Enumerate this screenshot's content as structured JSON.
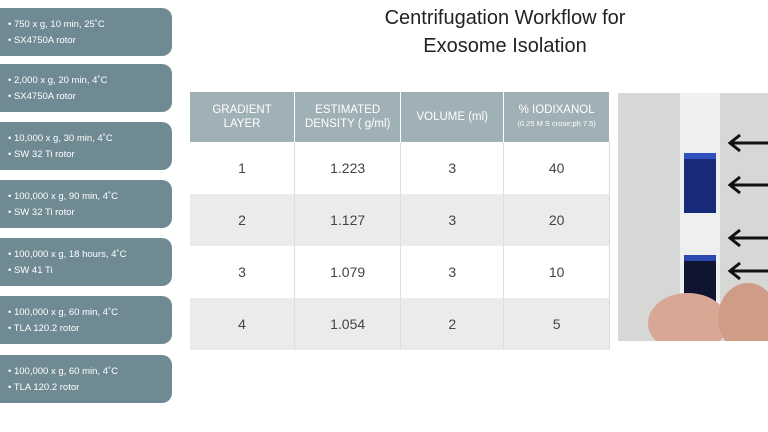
{
  "title": [
    "Centrifugation Workflow for",
    "Exosome Isolation"
  ],
  "steps": [
    [
      "• 750 x g, 10 min, 25˚C",
      "• SX4750A rotor"
    ],
    [
      "• 2,000 x g, 20 min, 4˚C",
      "• SX4750A rotor"
    ],
    [
      "• 10,000 x g, 30 min, 4˚C",
      "• SW 32 Ti rotor"
    ],
    [
      "• 100,000 x g, 90 min, 4˚C",
      "• SW 32 Ti rotor"
    ],
    [
      "• 100,000 x g, 18 hours, 4˚C",
      "• SW 41 Ti"
    ],
    [
      "• 100,000 x g, 60 min, 4˚C",
      "• TLA 120.2 rotor"
    ],
    [
      "• 100,000 x g, 60 min, 4˚C",
      "• TLA 120.2 rotor"
    ]
  ],
  "table": {
    "header": [
      "GRADIENT LAYER",
      "ESTIMATED DENSITY ( g/ml)",
      "VOLUME (ml)",
      "% IODIXANOL"
    ],
    "header_note": "(0.25 M S crose;ph 7.5)",
    "rows": [
      [
        "1",
        "1.223",
        "3",
        "40"
      ],
      [
        "2",
        "1.127",
        "3",
        "20"
      ],
      [
        "3",
        "1.079",
        "3",
        "10"
      ],
      [
        "4",
        "1.054",
        "2",
        "5"
      ]
    ]
  }
}
